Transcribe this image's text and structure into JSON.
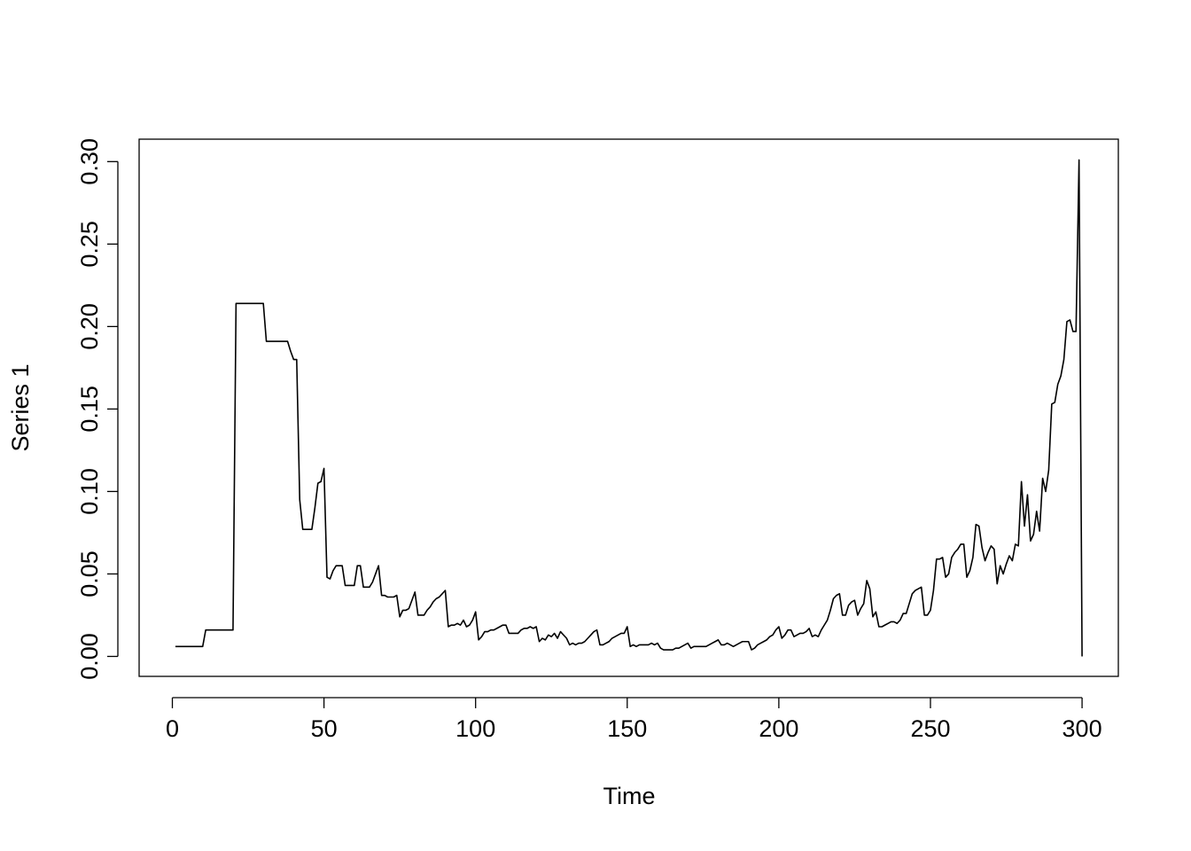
{
  "chart_data": {
    "type": "line",
    "xlabel": "Time",
    "ylabel": "Series 1",
    "color": "#000000",
    "xlim": [
      -10.96,
      311.96
    ],
    "ylim": [
      -0.0121,
      0.3136
    ],
    "xticks": [
      0,
      50,
      100,
      150,
      200,
      250,
      300
    ],
    "yticks": [
      {
        "value": 0,
        "label": "0.00"
      },
      0.05,
      {
        "value": 0.1,
        "label": "0.10"
      },
      0.15,
      {
        "value": 0.2,
        "label": "0.20"
      },
      0.25,
      {
        "value": 0.3,
        "label": "0.30"
      }
    ],
    "x": [
      1,
      2,
      3,
      4,
      5,
      6,
      7,
      8,
      9,
      10,
      11,
      12,
      13,
      14,
      15,
      16,
      17,
      18,
      19,
      20,
      21,
      22,
      23,
      24,
      25,
      26,
      27,
      28,
      29,
      30,
      31,
      32,
      33,
      34,
      35,
      36,
      37,
      38,
      39,
      40,
      41,
      42,
      43,
      44,
      45,
      46,
      47,
      48,
      49,
      50,
      51,
      52,
      53,
      54,
      55,
      56,
      57,
      58,
      59,
      60,
      61,
      62,
      63,
      64,
      65,
      66,
      67,
      68,
      69,
      70,
      71,
      72,
      73,
      74,
      75,
      76,
      77,
      78,
      79,
      80,
      81,
      82,
      83,
      84,
      85,
      86,
      87,
      88,
      89,
      90,
      91,
      92,
      93,
      94,
      95,
      96,
      97,
      98,
      99,
      100,
      101,
      102,
      103,
      104,
      105,
      106,
      107,
      108,
      109,
      110,
      111,
      112,
      113,
      114,
      115,
      116,
      117,
      118,
      119,
      120,
      121,
      122,
      123,
      124,
      125,
      126,
      127,
      128,
      129,
      130,
      131,
      132,
      133,
      134,
      135,
      136,
      137,
      138,
      139,
      140,
      141,
      142,
      143,
      144,
      145,
      146,
      147,
      148,
      149,
      150,
      151,
      152,
      153,
      154,
      155,
      156,
      157,
      158,
      159,
      160,
      161,
      162,
      163,
      164,
      165,
      166,
      167,
      168,
      169,
      170,
      171,
      172,
      173,
      174,
      175,
      176,
      177,
      178,
      179,
      180,
      181,
      182,
      183,
      184,
      185,
      186,
      187,
      188,
      189,
      190,
      191,
      192,
      193,
      194,
      195,
      196,
      197,
      198,
      199,
      200,
      201,
      202,
      203,
      204,
      205,
      206,
      207,
      208,
      209,
      210,
      211,
      212,
      213,
      214,
      215,
      216,
      217,
      218,
      219,
      220,
      221,
      222,
      223,
      224,
      225,
      226,
      227,
      228,
      229,
      230,
      231,
      232,
      233,
      234,
      235,
      236,
      237,
      238,
      239,
      240,
      241,
      242,
      243,
      244,
      245,
      246,
      247,
      248,
      249,
      250,
      251,
      252,
      253,
      254,
      255,
      256,
      257,
      258,
      259,
      260,
      261,
      262,
      263,
      264,
      265,
      266,
      267,
      268,
      269,
      270,
      271,
      272,
      273,
      274,
      275,
      276,
      277,
      278,
      279,
      280,
      281,
      282,
      283,
      284,
      285,
      286,
      287,
      288,
      289,
      290,
      291,
      292,
      293,
      294,
      295,
      296,
      297,
      298,
      299,
      300
    ],
    "values": [
      0.006,
      0.006,
      0.006,
      0.006,
      0.006,
      0.006,
      0.006,
      0.006,
      0.006,
      0.006,
      0.016,
      0.016,
      0.016,
      0.016,
      0.016,
      0.016,
      0.016,
      0.016,
      0.016,
      0.016,
      0.214,
      0.214,
      0.214,
      0.214,
      0.214,
      0.214,
      0.214,
      0.214,
      0.214,
      0.214,
      0.191,
      0.191,
      0.191,
      0.191,
      0.191,
      0.191,
      0.191,
      0.191,
      0.185,
      0.18,
      0.18,
      0.095,
      0.077,
      0.077,
      0.077,
      0.077,
      0.09,
      0.105,
      0.106,
      0.114,
      0.048,
      0.047,
      0.052,
      0.055,
      0.055,
      0.055,
      0.043,
      0.043,
      0.043,
      0.043,
      0.055,
      0.055,
      0.042,
      0.042,
      0.042,
      0.045,
      0.05,
      0.055,
      0.037,
      0.037,
      0.036,
      0.036,
      0.036,
      0.037,
      0.024,
      0.028,
      0.028,
      0.029,
      0.034,
      0.039,
      0.025,
      0.025,
      0.025,
      0.028,
      0.03,
      0.033,
      0.035,
      0.036,
      0.038,
      0.04,
      0.018,
      0.019,
      0.019,
      0.02,
      0.019,
      0.022,
      0.018,
      0.019,
      0.022,
      0.027,
      0.01,
      0.012,
      0.015,
      0.015,
      0.016,
      0.016,
      0.017,
      0.018,
      0.019,
      0.019,
      0.014,
      0.014,
      0.014,
      0.014,
      0.016,
      0.017,
      0.017,
      0.018,
      0.017,
      0.018,
      0.009,
      0.011,
      0.01,
      0.013,
      0.012,
      0.014,
      0.011,
      0.015,
      0.013,
      0.011,
      0.007,
      0.008,
      0.007,
      0.008,
      0.008,
      0.009,
      0.011,
      0.013,
      0.015,
      0.016,
      0.007,
      0.007,
      0.008,
      0.009,
      0.011,
      0.012,
      0.013,
      0.014,
      0.014,
      0.018,
      0.006,
      0.007,
      0.006,
      0.007,
      0.007,
      0.007,
      0.007,
      0.008,
      0.007,
      0.008,
      0.005,
      0.004,
      0.004,
      0.004,
      0.004,
      0.005,
      0.005,
      0.006,
      0.007,
      0.008,
      0.005,
      0.006,
      0.006,
      0.006,
      0.006,
      0.006,
      0.007,
      0.008,
      0.009,
      0.01,
      0.007,
      0.007,
      0.008,
      0.007,
      0.006,
      0.007,
      0.008,
      0.009,
      0.009,
      0.009,
      0.004,
      0.005,
      0.007,
      0.008,
      0.009,
      0.01,
      0.012,
      0.013,
      0.016,
      0.018,
      0.011,
      0.013,
      0.016,
      0.016,
      0.012,
      0.013,
      0.014,
      0.014,
      0.015,
      0.017,
      0.012,
      0.013,
      0.012,
      0.016,
      0.019,
      0.022,
      0.028,
      0.035,
      0.037,
      0.038,
      0.025,
      0.025,
      0.031,
      0.033,
      0.034,
      0.025,
      0.029,
      0.032,
      0.046,
      0.041,
      0.024,
      0.027,
      0.018,
      0.018,
      0.019,
      0.02,
      0.021,
      0.021,
      0.02,
      0.022,
      0.026,
      0.026,
      0.032,
      0.038,
      0.04,
      0.041,
      0.042,
      0.025,
      0.025,
      0.028,
      0.04,
      0.059,
      0.059,
      0.06,
      0.048,
      0.05,
      0.06,
      0.063,
      0.065,
      0.068,
      0.068,
      0.048,
      0.052,
      0.06,
      0.08,
      0.079,
      0.066,
      0.058,
      0.063,
      0.067,
      0.065,
      0.044,
      0.055,
      0.05,
      0.056,
      0.061,
      0.058,
      0.068,
      0.067,
      0.106,
      0.079,
      0.098,
      0.07,
      0.074,
      0.088,
      0.076,
      0.108,
      0.1,
      0.113,
      0.153,
      0.154,
      0.165,
      0.17,
      0.18,
      0.203,
      0.204,
      0.197,
      0.197,
      0.301,
      0
    ]
  }
}
